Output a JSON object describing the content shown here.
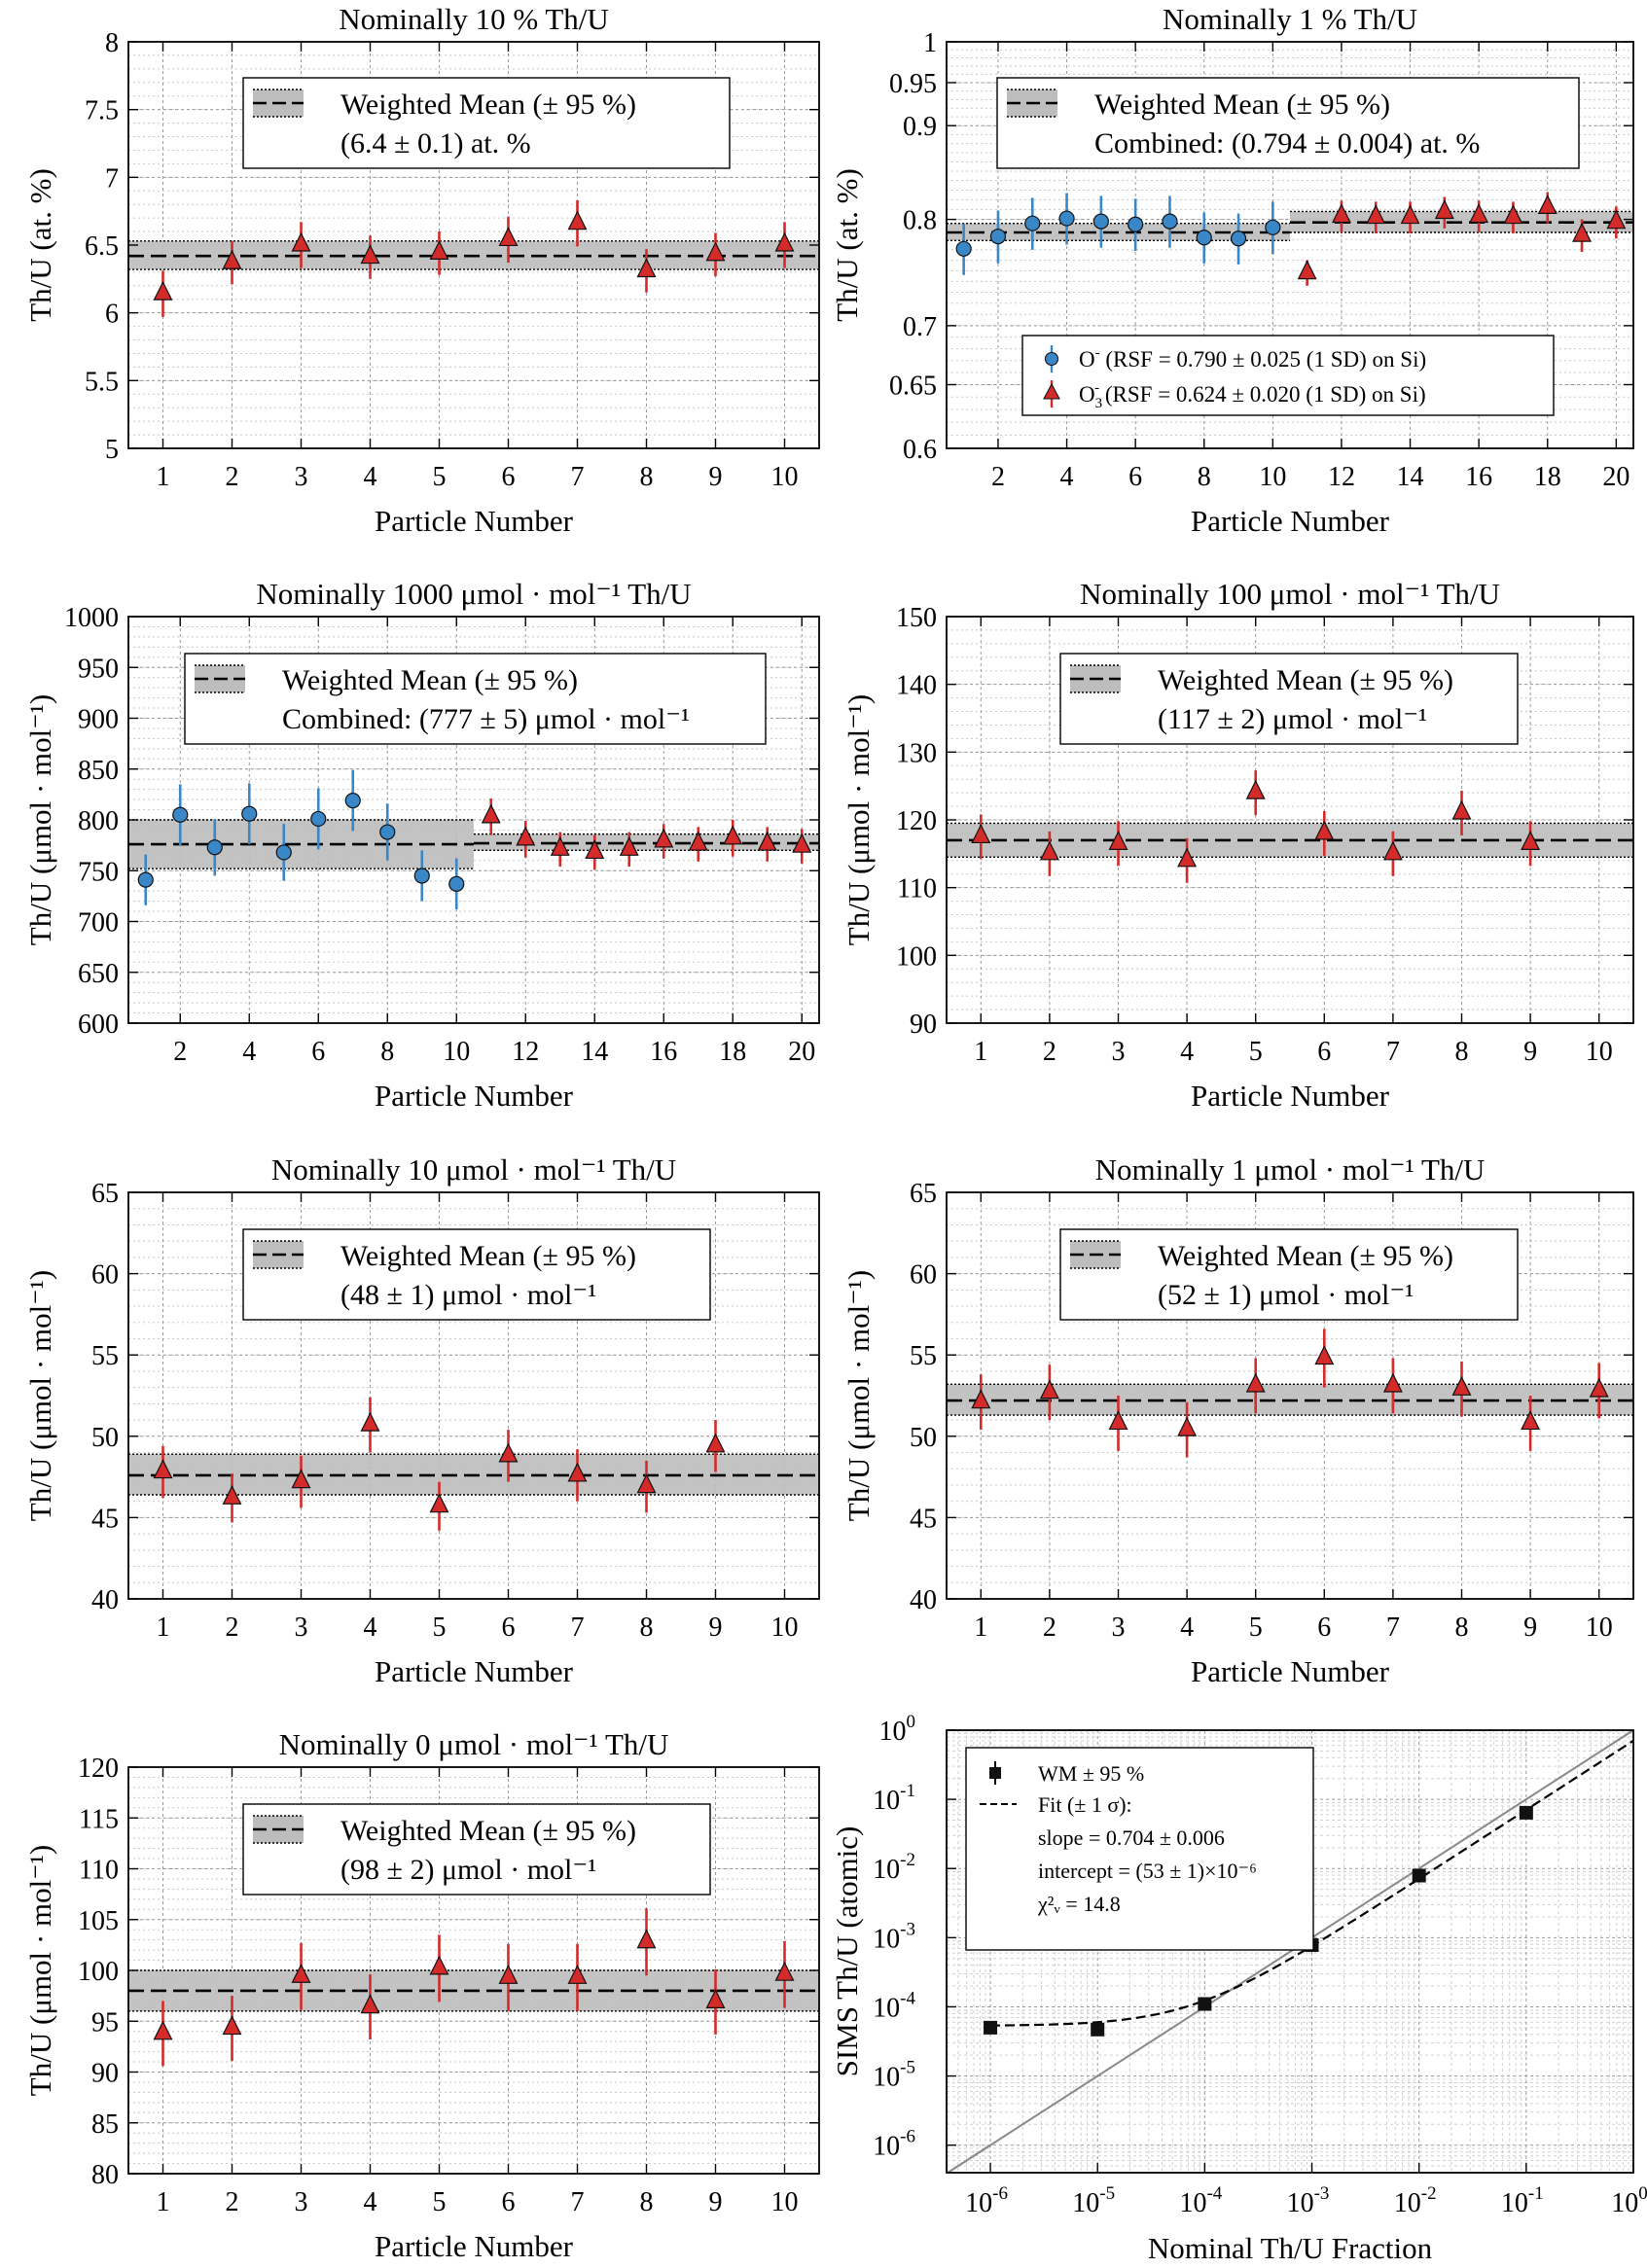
{
  "chart_data": [
    {
      "id": "p1",
      "type": "scatter",
      "title": "Nominally 10 % Th/U",
      "xlabel": "Particle Number",
      "ylabel": "Th/U (at. %)",
      "xlim": [
        0.5,
        10.5
      ],
      "ylim": [
        5,
        8
      ],
      "xticks": [
        1,
        2,
        3,
        4,
        5,
        6,
        7,
        8,
        9,
        10
      ],
      "yticks": [
        5,
        5.5,
        6,
        6.5,
        7,
        7.5,
        8
      ],
      "ytick_labels": [
        "5",
        "5.5",
        "6",
        "6.5",
        "7",
        "7.5",
        "8"
      ],
      "grid": true,
      "legend_location": "top-center",
      "legend": {
        "label": "Weighted Mean (± 95 %)",
        "lines": [
          "(6.4 ± 0.1) at. %"
        ]
      },
      "weighted_mean": [
        {
          "x0": 0.5,
          "x1": 10.5,
          "mean": 6.42,
          "lower": 6.32,
          "upper": 6.53
        }
      ],
      "series": [
        {
          "marker": "triangle",
          "color": "#d42a2a",
          "x": [
            1,
            2,
            3,
            4,
            5,
            6,
            7,
            8,
            9,
            10
          ],
          "y": [
            6.14,
            6.37,
            6.5,
            6.41,
            6.44,
            6.54,
            6.66,
            6.31,
            6.43,
            6.5
          ],
          "err": [
            0.17,
            0.16,
            0.17,
            0.16,
            0.16,
            0.17,
            0.17,
            0.16,
            0.16,
            0.17
          ]
        }
      ]
    },
    {
      "id": "p2",
      "type": "scatter",
      "title": "Nominally 1 % Th/U",
      "xlabel": "Particle Number",
      "ylabel": "Th/U (at. %)",
      "xlim": [
        0.5,
        20.5
      ],
      "ylim": [
        0.6,
        1.0
      ],
      "yscale": "log",
      "xticks": [
        2,
        4,
        6,
        8,
        10,
        12,
        14,
        16,
        18,
        20
      ],
      "yticks": [
        0.6,
        0.65,
        0.7,
        0.8,
        0.9,
        0.95,
        1
      ],
      "ytick_labels": [
        "0.6",
        "0.65",
        "0.7",
        "0.8",
        "0.9",
        "0.95",
        "1"
      ],
      "grid": true,
      "legend_location": "top-center",
      "legend": {
        "label": "Weighted Mean (± 95 %)",
        "lines": [
          "Combined: (0.794 ± 0.004) at. %"
        ]
      },
      "legend2": [
        {
          "marker": "circle",
          "color": "#3a87c8",
          "ion": "O",
          "sup": "-",
          "text": " (RSF = 0.790 ± 0.025 (1 SD) on Si)"
        },
        {
          "marker": "triangle",
          "color": "#d42a2a",
          "ion": "O",
          "sub": "3",
          "sup": "-",
          "text": " (RSF = 0.624 ± 0.020 (1 SD) on Si)"
        }
      ],
      "weighted_mean": [
        {
          "x0": 0.5,
          "x1": 10.5,
          "mean": 0.787,
          "lower": 0.779,
          "upper": 0.796
        },
        {
          "x0": 10.5,
          "x1": 20.5,
          "mean": 0.797,
          "lower": 0.787,
          "upper": 0.808
        }
      ],
      "series": [
        {
          "name": "O-",
          "marker": "circle",
          "color": "#3a87c8",
          "x": [
            1,
            2,
            3,
            4,
            5,
            6,
            7,
            8,
            9,
            10
          ],
          "y": [
            0.771,
            0.783,
            0.796,
            0.801,
            0.798,
            0.795,
            0.798,
            0.782,
            0.781,
            0.792
          ],
          "err": [
            0.025,
            0.026,
            0.026,
            0.026,
            0.026,
            0.026,
            0.026,
            0.025,
            0.025,
            0.026
          ]
        },
        {
          "name": "O3-",
          "marker": "triangle",
          "color": "#d42a2a",
          "x": [
            11,
            12,
            13,
            14,
            15,
            16,
            17,
            18,
            19,
            20
          ],
          "y": [
            0.748,
            0.803,
            0.802,
            0.802,
            0.807,
            0.803,
            0.802,
            0.812,
            0.784,
            0.797
          ],
          "err": [
            0.012,
            0.016,
            0.016,
            0.016,
            0.016,
            0.016,
            0.016,
            0.016,
            0.016,
            0.016
          ]
        }
      ]
    },
    {
      "id": "p3",
      "type": "scatter",
      "title": "Nominally 1000 μmol · mol⁻¹ Th/U",
      "xlabel": "Particle Number",
      "ylabel": "Th/U (μmol · mol⁻¹)",
      "xlim": [
        0.5,
        20.5
      ],
      "ylim": [
        600,
        1000
      ],
      "xticks": [
        2,
        4,
        6,
        8,
        10,
        12,
        14,
        16,
        18,
        20
      ],
      "yticks": [
        600,
        650,
        700,
        750,
        800,
        850,
        900,
        950,
        1000
      ],
      "ytick_labels": [
        "600",
        "650",
        "700",
        "750",
        "800",
        "850",
        "900",
        "950",
        "1000"
      ],
      "grid": true,
      "legend_location": "top-center",
      "legend": {
        "label": "Weighted Mean (± 95 %)",
        "lines": [
          "Combined: (777 ± 5) μmol · mol⁻¹"
        ]
      },
      "weighted_mean": [
        {
          "x0": 0.5,
          "x1": 10.5,
          "mean": 776,
          "lower": 752,
          "upper": 800
        },
        {
          "x0": 10.5,
          "x1": 20.5,
          "mean": 777,
          "lower": 770,
          "upper": 786
        }
      ],
      "series": [
        {
          "marker": "circle",
          "color": "#3a87c8",
          "x": [
            1,
            2,
            3,
            4,
            5,
            6,
            7,
            8,
            9,
            10
          ],
          "y": [
            741,
            805,
            773,
            806,
            768,
            801,
            819,
            788,
            745,
            737
          ],
          "err": [
            25,
            30,
            28,
            30,
            28,
            30,
            30,
            28,
            25,
            25
          ]
        },
        {
          "marker": "triangle",
          "color": "#d42a2a",
          "x": [
            11,
            12,
            13,
            14,
            15,
            16,
            17,
            18,
            19,
            20
          ],
          "y": [
            803,
            781,
            771,
            768,
            771,
            779,
            776,
            782,
            776,
            774
          ],
          "err": [
            18,
            18,
            17,
            17,
            17,
            17,
            17,
            18,
            17,
            17
          ]
        }
      ]
    },
    {
      "id": "p4",
      "type": "scatter",
      "title": "Nominally 100 μmol · mol⁻¹ Th/U",
      "xlabel": "Particle Number",
      "ylabel": "Th/U (μmol · mol⁻¹)",
      "xlim": [
        0.5,
        10.5
      ],
      "ylim": [
        90,
        150
      ],
      "xticks": [
        1,
        2,
        3,
        4,
        5,
        6,
        7,
        8,
        9,
        10
      ],
      "yticks": [
        90,
        100,
        110,
        120,
        130,
        140,
        150
      ],
      "ytick_labels": [
        "90",
        "100",
        "110",
        "120",
        "130",
        "140",
        "150"
      ],
      "grid": true,
      "legend_location": "top-center",
      "legend": {
        "label": "Weighted Mean (± 95 %)",
        "lines": [
          "(117 ± 2) μmol · mol⁻¹"
        ]
      },
      "weighted_mean": [
        {
          "x0": 0.5,
          "x1": 10.5,
          "mean": 117,
          "lower": 114.5,
          "upper": 119.5
        }
      ],
      "series": [
        {
          "marker": "triangle",
          "color": "#d42a2a",
          "x": [
            1,
            2,
            3,
            4,
            5,
            6,
            7,
            8,
            9
          ],
          "y": [
            117.5,
            115,
            116.5,
            114,
            124,
            118,
            115,
            121,
            116.5
          ],
          "err": [
            3.3,
            3.3,
            3.3,
            3.3,
            3.3,
            3.3,
            3.3,
            3.3,
            3.3
          ]
        }
      ]
    },
    {
      "id": "p5",
      "type": "scatter",
      "title": "Nominally 10 μmol · mol⁻¹ Th/U",
      "xlabel": "Particle Number",
      "ylabel": "Th/U (μmol · mol⁻¹)",
      "xlim": [
        0.5,
        10.5
      ],
      "ylim": [
        40,
        65
      ],
      "xticks": [
        1,
        2,
        3,
        4,
        5,
        6,
        7,
        8,
        9,
        10
      ],
      "yticks": [
        40,
        45,
        50,
        55,
        60,
        65
      ],
      "ytick_labels": [
        "40",
        "45",
        "50",
        "55",
        "60",
        "65"
      ],
      "grid": true,
      "legend_location": "top-center",
      "legend": {
        "label": "Weighted Mean (± 95 %)",
        "lines": [
          "(48 ± 1) μmol · mol⁻¹"
        ]
      },
      "weighted_mean": [
        {
          "x0": 0.5,
          "x1": 10.5,
          "mean": 47.6,
          "lower": 46.4,
          "upper": 48.9
        }
      ],
      "series": [
        {
          "marker": "triangle",
          "color": "#d42a2a",
          "x": [
            1,
            2,
            3,
            4,
            5,
            6,
            7,
            8,
            9
          ],
          "y": [
            47.8,
            46.2,
            47.2,
            50.7,
            45.7,
            48.8,
            47.6,
            46.9,
            49.4
          ],
          "err": [
            1.6,
            1.5,
            1.6,
            1.7,
            1.5,
            1.6,
            1.6,
            1.6,
            1.6
          ]
        }
      ]
    },
    {
      "id": "p6",
      "type": "scatter",
      "title": "Nominally 1 μmol · mol⁻¹ Th/U",
      "xlabel": "Particle Number",
      "ylabel": "Th/U (μmol · mol⁻¹)",
      "xlim": [
        0.5,
        10.5
      ],
      "ylim": [
        40,
        65
      ],
      "xticks": [
        1,
        2,
        3,
        4,
        5,
        6,
        7,
        8,
        9,
        10
      ],
      "yticks": [
        40,
        45,
        50,
        55,
        60,
        65
      ],
      "ytick_labels": [
        "40",
        "45",
        "50",
        "55",
        "60",
        "65"
      ],
      "grid": true,
      "legend_location": "top-center",
      "legend": {
        "label": "Weighted Mean (± 95 %)",
        "lines": [
          "(52 ± 1) μmol · mol⁻¹"
        ]
      },
      "weighted_mean": [
        {
          "x0": 0.5,
          "x1": 10.5,
          "mean": 52.2,
          "lower": 51.3,
          "upper": 53.2
        }
      ],
      "series": [
        {
          "marker": "triangle",
          "color": "#d42a2a",
          "x": [
            1,
            2,
            3,
            4,
            5,
            6,
            7,
            8,
            9,
            10
          ],
          "y": [
            52.1,
            52.7,
            50.8,
            50.4,
            53.1,
            54.8,
            53.1,
            52.9,
            50.8,
            52.8
          ],
          "err": [
            1.7,
            1.7,
            1.7,
            1.7,
            1.7,
            1.8,
            1.7,
            1.7,
            1.7,
            1.7
          ]
        }
      ]
    },
    {
      "id": "p7",
      "type": "scatter",
      "title": "Nominally 0 μmol · mol⁻¹ Th/U",
      "xlabel": "Particle Number",
      "ylabel": "Th/U (μmol · mol⁻¹)",
      "xlim": [
        0.5,
        10.5
      ],
      "ylim": [
        80,
        120
      ],
      "xticks": [
        1,
        2,
        3,
        4,
        5,
        6,
        7,
        8,
        9,
        10
      ],
      "yticks": [
        80,
        85,
        90,
        95,
        100,
        105,
        110,
        115,
        120
      ],
      "ytick_labels": [
        "80",
        "85",
        "90",
        "95",
        "100",
        "105",
        "110",
        "115",
        "120"
      ],
      "grid": true,
      "legend_location": "top-center",
      "legend": {
        "label": "Weighted Mean (± 95 %)",
        "lines": [
          "(98 ± 2) μmol · mol⁻¹"
        ]
      },
      "weighted_mean": [
        {
          "x0": 0.5,
          "x1": 10.5,
          "mean": 98,
          "lower": 96,
          "upper": 100
        }
      ],
      "series": [
        {
          "marker": "triangle",
          "color": "#d42a2a",
          "x": [
            1,
            2,
            3,
            4,
            5,
            6,
            7,
            8,
            9,
            10
          ],
          "y": [
            93.8,
            94.3,
            99.4,
            96.4,
            100.2,
            99.3,
            99.3,
            102.8,
            96.9,
            99.6
          ],
          "err": [
            3.2,
            3.2,
            3.3,
            3.2,
            3.3,
            3.3,
            3.3,
            3.3,
            3.2,
            3.3
          ]
        }
      ]
    },
    {
      "id": "p8",
      "type": "scatter",
      "xscale": "log",
      "yscale": "log",
      "xlabel": "Nominal Th/U Fraction",
      "ylabel": "SIMS Th/U (atomic)",
      "xlim": [
        3.9e-07,
        1
      ],
      "ylim": [
        4e-07,
        1
      ],
      "xtick_exponents": [
        -6,
        -5,
        -4,
        -3,
        -2,
        -1,
        0
      ],
      "ytick_exponents": [
        -6,
        -5,
        -4,
        -3,
        -2,
        -1,
        0
      ],
      "grid": true,
      "legend_location": "top-left",
      "legend_lines": [
        "WM ± 95 %",
        "Fit (± 1 σ):",
        "slope =  0.704 ± 0.006",
        "intercept = (53 ± 1)×10⁻⁶",
        "χ²ᵥ = 14.8"
      ],
      "points": [
        {
          "x": 1e-06,
          "y": 5e-05
        },
        {
          "x": 1e-05,
          "y": 4.7e-05
        },
        {
          "x": 0.0001,
          "y": 0.00011
        },
        {
          "x": 0.001,
          "y": 0.00078
        },
        {
          "x": 0.01,
          "y": 0.0079
        },
        {
          "x": 0.1,
          "y": 0.064
        }
      ],
      "fit": {
        "slope": 0.704,
        "intercept": 5.3e-05
      },
      "identity_line": true
    }
  ]
}
